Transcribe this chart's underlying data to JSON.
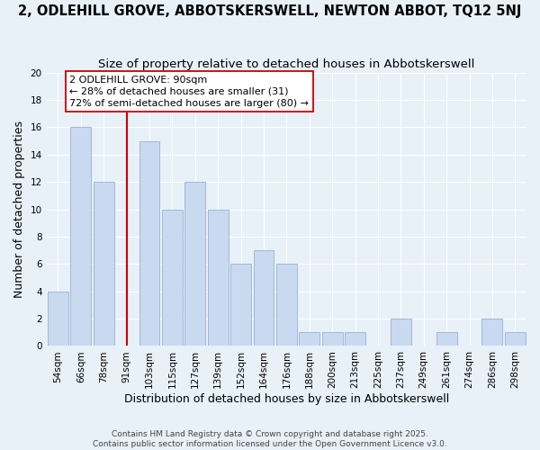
{
  "title": "2, ODLEHILL GROVE, ABBOTSKERSWELL, NEWTON ABBOT, TQ12 5NJ",
  "subtitle": "Size of property relative to detached houses in Abbotskerswell",
  "xlabel": "Distribution of detached houses by size in Abbotskerswell",
  "ylabel": "Number of detached properties",
  "bin_labels": [
    "54sqm",
    "66sqm",
    "78sqm",
    "91sqm",
    "103sqm",
    "115sqm",
    "127sqm",
    "139sqm",
    "152sqm",
    "164sqm",
    "176sqm",
    "188sqm",
    "200sqm",
    "213sqm",
    "225sqm",
    "237sqm",
    "249sqm",
    "261sqm",
    "274sqm",
    "286sqm",
    "298sqm"
  ],
  "bar_heights": [
    4,
    16,
    12,
    0,
    15,
    10,
    12,
    10,
    6,
    7,
    6,
    1,
    1,
    1,
    0,
    2,
    0,
    1,
    0,
    2,
    1
  ],
  "bar_color": "#c9d9f0",
  "bar_edge_color": "#a0b8d8",
  "reference_line_color": "#cc0000",
  "annotation_text": "2 ODLEHILL GROVE: 90sqm\n← 28% of detached houses are smaller (31)\n72% of semi-detached houses are larger (80) →",
  "annotation_box_color": "#ffffff",
  "annotation_box_edge_color": "#cc0000",
  "ylim": [
    0,
    20
  ],
  "yticks": [
    0,
    2,
    4,
    6,
    8,
    10,
    12,
    14,
    16,
    18,
    20
  ],
  "background_color": "#e8f0f8",
  "footer_line1": "Contains HM Land Registry data © Crown copyright and database right 2025.",
  "footer_line2": "Contains public sector information licensed under the Open Government Licence v3.0.",
  "title_fontsize": 10.5,
  "subtitle_fontsize": 9.5,
  "axis_label_fontsize": 9,
  "tick_fontsize": 7.5,
  "footer_fontsize": 6.5
}
